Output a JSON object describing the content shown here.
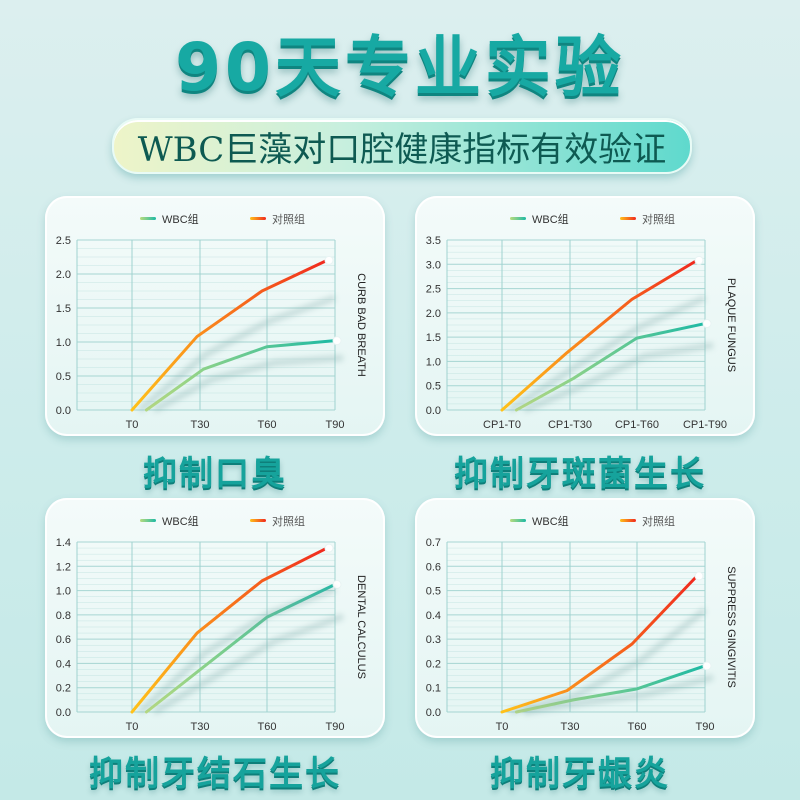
{
  "header": {
    "title": "90天专业实验",
    "subtitle": "WBC巨藻对口腔健康指标有效验证"
  },
  "colors": {
    "title": "#17a9a3",
    "wbc_series_start": "#b9dc7e",
    "wbc_series_end": "#1db9a4",
    "control_series_start": "#ffc21a",
    "control_series_end": "#f0281e",
    "grid": "#9fd2cf",
    "background": "#cdeceb"
  },
  "legend": {
    "wbc": "WBC组",
    "control": "对照组"
  },
  "panels": [
    {
      "caption": "抑制口臭",
      "side_label": "CURB BAD BREATH"
    },
    {
      "caption": "抑制牙斑菌生长",
      "side_label": "PLAQUE FUNGUS"
    },
    {
      "caption": "抑制牙结石生长",
      "side_label": "DENTAL CALCULUS"
    },
    {
      "caption": "抑制牙龈炎",
      "side_label": "SUPPRESS GINGIVITIS"
    }
  ],
  "chart_data": [
    {
      "type": "line",
      "title": "抑制口臭",
      "ylabel": "CURB BAD BREATH",
      "xlabel": "",
      "categories": [
        "T0",
        "T30",
        "T60",
        "T90"
      ],
      "yticks": [
        "0.0",
        "0.5",
        "1.0",
        "1.5",
        "2.0",
        "2.5"
      ],
      "ylim": [
        0,
        2.5
      ],
      "grid": true,
      "legend_position": "top",
      "series": [
        {
          "name": "WBC组",
          "values": [
            0.0,
            0.6,
            0.93,
            1.02
          ]
        },
        {
          "name": "对照组",
          "values": [
            0.0,
            1.08,
            1.75,
            2.2
          ]
        }
      ]
    },
    {
      "type": "line",
      "title": "抑制牙斑菌生长",
      "ylabel": "PLAQUE FUNGUS",
      "xlabel": "",
      "categories": [
        "CP1-T0",
        "CP1-T30",
        "CP1-T60",
        "CP1-T90"
      ],
      "yticks": [
        "0.0",
        "0.5",
        "1.0",
        "1.5",
        "2.0",
        "2.5",
        "3.0",
        "3.5"
      ],
      "ylim": [
        0,
        3.5
      ],
      "grid": true,
      "legend_position": "top",
      "series": [
        {
          "name": "WBC组",
          "values": [
            0.0,
            0.65,
            1.48,
            1.78
          ]
        },
        {
          "name": "对照组",
          "values": [
            0.0,
            1.18,
            2.28,
            3.08
          ]
        }
      ]
    },
    {
      "type": "line",
      "title": "抑制牙结石生长",
      "ylabel": "DENTAL CALCULUS",
      "xlabel": "",
      "categories": [
        "T0",
        "T30",
        "T60",
        "T90"
      ],
      "yticks": [
        "0.0",
        "0.2",
        "0.4",
        "0.6",
        "0.8",
        "1.0",
        "1.2",
        "1.4"
      ],
      "ylim": [
        0,
        1.4
      ],
      "grid": true,
      "legend_position": "top",
      "series": [
        {
          "name": "WBC组",
          "values": [
            0.0,
            0.37,
            0.78,
            1.05
          ]
        },
        {
          "name": "对照组",
          "values": [
            0.0,
            0.65,
            1.08,
            1.35
          ]
        }
      ]
    },
    {
      "type": "line",
      "title": "抑制牙龈炎",
      "ylabel": "SUPPRESS GINGIVITIS",
      "xlabel": "",
      "categories": [
        "T0",
        "T30",
        "T60",
        "T90"
      ],
      "yticks": [
        "0.0",
        "0.1",
        "0.2",
        "0.3",
        "0.4",
        "0.5",
        "0.6",
        "0.7"
      ],
      "ylim": [
        0,
        0.7
      ],
      "grid": true,
      "legend_position": "top",
      "series": [
        {
          "name": "WBC组",
          "values": [
            0.0,
            0.05,
            0.095,
            0.19
          ]
        },
        {
          "name": "对照组",
          "values": [
            0.0,
            0.088,
            0.28,
            0.56
          ]
        }
      ]
    }
  ]
}
